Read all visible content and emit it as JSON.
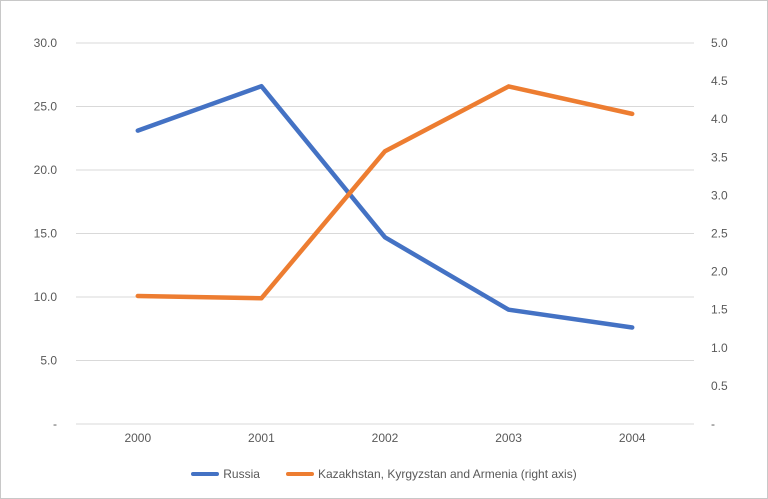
{
  "chart_data": {
    "type": "line",
    "categories": [
      "2000",
      "2001",
      "2002",
      "2003",
      "2004"
    ],
    "series": [
      {
        "name": "Russia",
        "axis": "left",
        "color": "#4472C4",
        "values": [
          23.1,
          26.6,
          14.7,
          9.0,
          7.6
        ]
      },
      {
        "name": "Kazakhstan, Kyrgyzstan and Armenia (right axis)",
        "axis": "right",
        "color": "#ED7D31",
        "values": [
          1.68,
          1.65,
          3.58,
          4.43,
          4.07
        ]
      }
    ],
    "left_axis": {
      "min": 0,
      "max": 30,
      "tick_step": 5,
      "tick_labels": [
        "-",
        "5.0",
        "10.0",
        "15.0",
        "20.0",
        "25.0",
        "30.0"
      ]
    },
    "right_axis": {
      "min": 0,
      "max": 5,
      "tick_step": 0.5,
      "tick_labels": [
        "-",
        "0.5",
        "1.0",
        "1.5",
        "2.0",
        "2.5",
        "3.0",
        "3.5",
        "4.0",
        "4.5",
        "5.0"
      ]
    },
    "title": "",
    "xlabel": "",
    "ylabel": "",
    "grid": true,
    "legend_position": "bottom",
    "gridline_color": "#D9D9D9",
    "axis_text_color": "#595959"
  }
}
